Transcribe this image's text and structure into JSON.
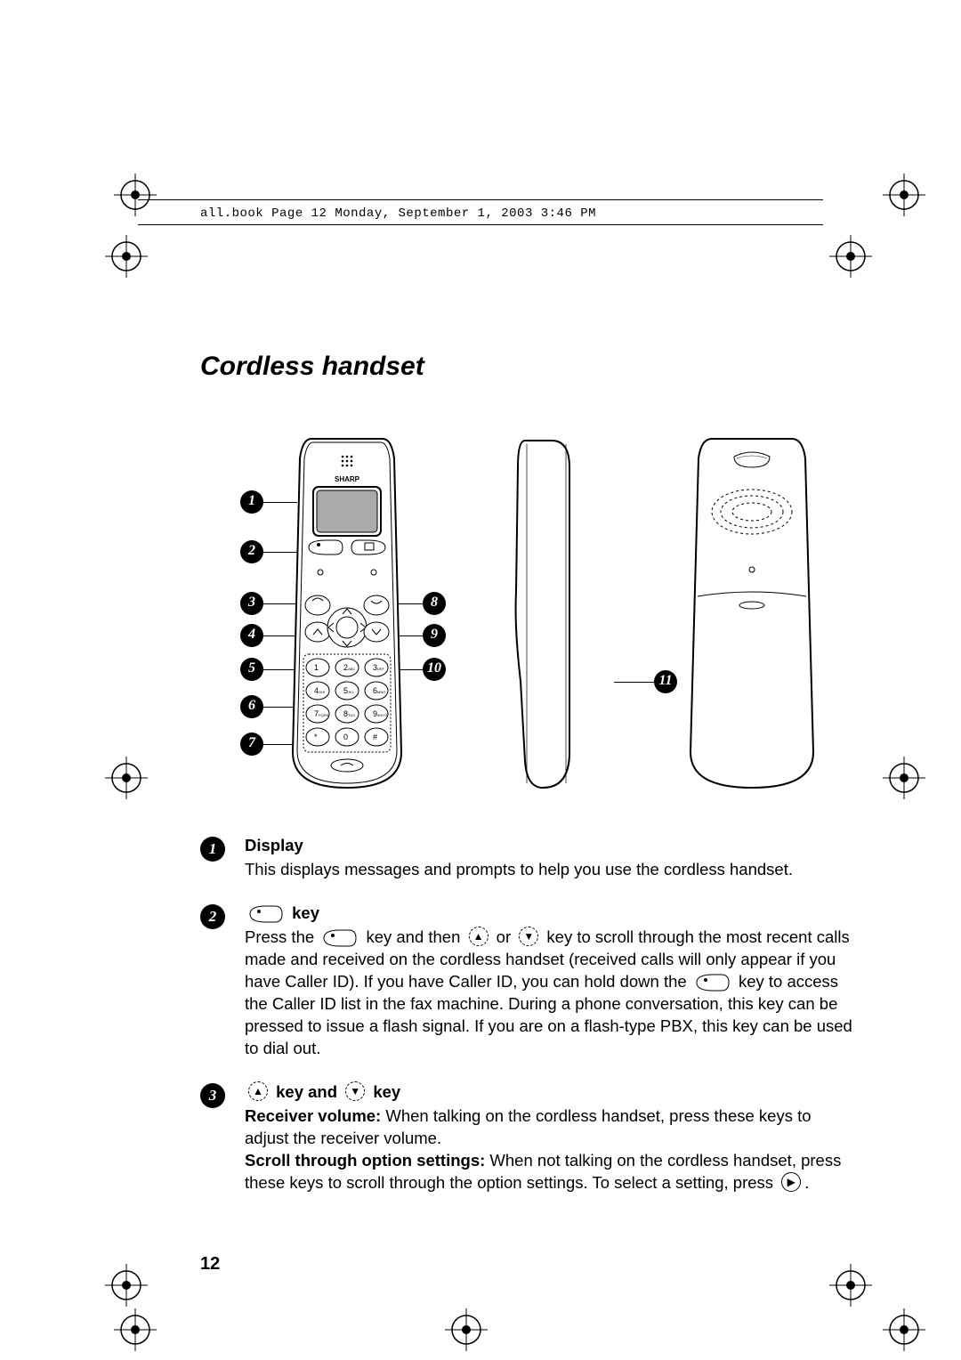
{
  "header": {
    "text": "all.book  Page 12  Monday, September 1, 2003  3:46 PM"
  },
  "title": "Cordless handset",
  "page_number": "12",
  "figure": {
    "callouts_left": [
      "1",
      "2",
      "3",
      "4",
      "5",
      "6",
      "7"
    ],
    "callouts_right": [
      "8",
      "9",
      "10"
    ],
    "callout_side": "11",
    "brand": "SHARP",
    "keypad": {
      "keys": [
        "1",
        "2",
        "3",
        "4",
        "5",
        "6",
        "7",
        "8",
        "9",
        "*",
        "0",
        "#"
      ],
      "sub": [
        "",
        "ABC",
        "DEF",
        "GHI",
        "JKL",
        "MNO",
        "PQRS",
        "TUV",
        "WXYZ",
        "",
        "",
        ""
      ]
    }
  },
  "items": [
    {
      "num": "1",
      "heading": "Display",
      "body": "This displays messages and prompts to help you use the cordless handset."
    },
    {
      "num": "2",
      "heading_suffix": " key",
      "p1a": "Press the ",
      "p1b": " key and then ",
      "p1c": " or ",
      "p1d": " key to scroll through the most recent calls made and received on the cordless handset (received calls will only appear if you have Caller ID). If you have Caller ID, you can hold down the ",
      "p1e": " key to access the Caller ID list in the fax machine. During a phone conversation, this key can be pressed to issue a flash signal. If you are on a flash-type PBX, this key can be used to dial out."
    },
    {
      "num": "3",
      "heading_mid": " key and  ",
      "heading_end": " key",
      "l1a": "Receiver volume:",
      "l1b": " When talking on the cordless handset, press these keys to adjust the receiver volume.",
      "l2a": "Scroll through option settings:",
      "l2b": " When not talking on the cordless handset, press these keys to scroll through the option settings. To select a setting, press ",
      "l2c": "."
    }
  ],
  "style": {
    "page_bg": "#ffffff",
    "text_color": "#000000",
    "title_fontsize": 30,
    "body_fontsize": 18.5,
    "mono_fontsize": 14,
    "circle_bg": "#000000",
    "circle_fg": "#ffffff"
  }
}
